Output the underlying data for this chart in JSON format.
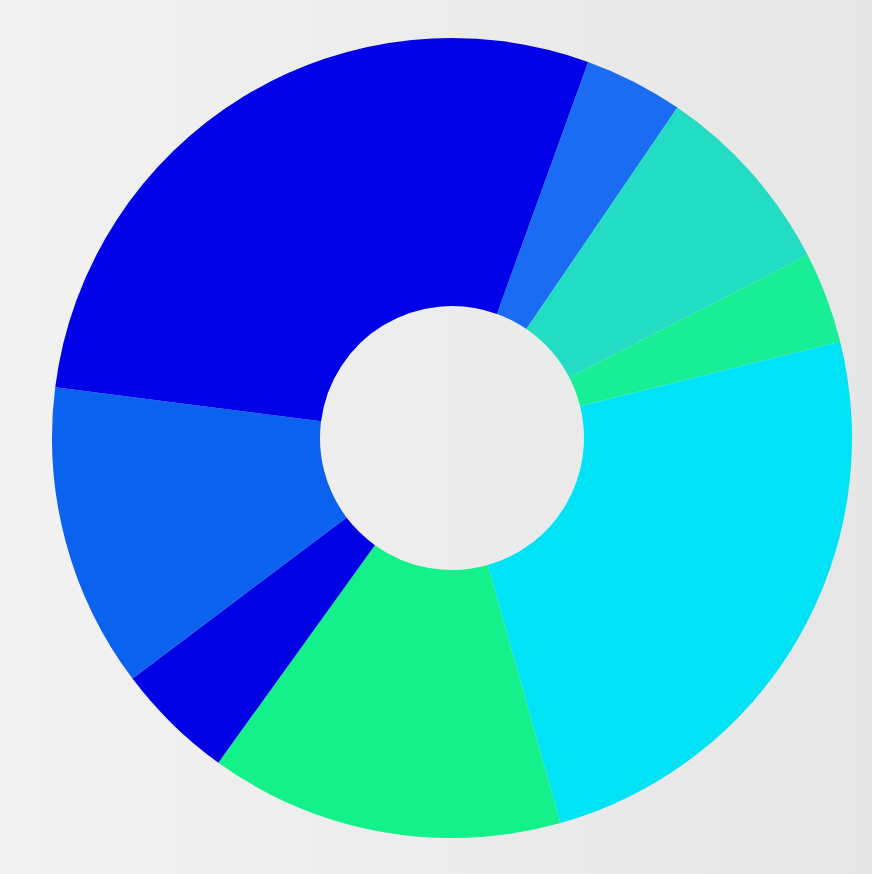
{
  "chart_data": {
    "type": "donut",
    "categories": [
      null,
      null,
      null,
      null,
      null,
      null,
      null,
      null
    ],
    "values": [
      4.0,
      7.9,
      3.7,
      24.5,
      14.3,
      4.8,
      12.3,
      28.5
    ],
    "colors": [
      "#1a6cf2",
      "#22dcc4",
      "#18ee96",
      "#00e2f6",
      "#14f08a",
      "#0000e4",
      "#0b62ef",
      "#0000e8"
    ],
    "legend": false
  }
}
